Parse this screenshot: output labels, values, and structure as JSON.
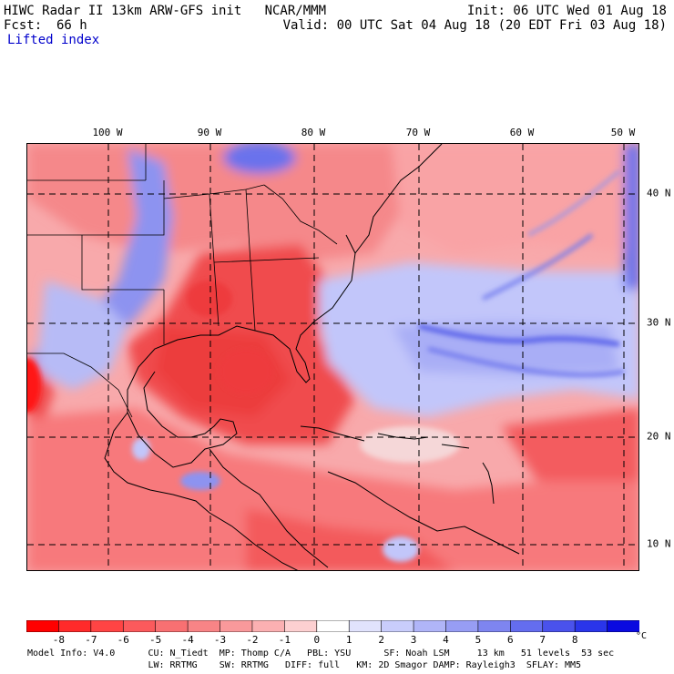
{
  "header": {
    "title": "HIWC Radar II 13km ARW-GFS init   NCAR/MMM",
    "init": "Init: 06 UTC Wed 01 Aug 18",
    "fcst_label": "Fcst:",
    "fcst_value": "66 h",
    "valid": "Valid: 00 UTC Sat 04 Aug 18 (20 EDT Fri 03 Aug 18)",
    "field": "Lifted index"
  },
  "map": {
    "longitude_labels": [
      "100 W",
      "90 W",
      "80 W",
      "70 W",
      "60 W",
      "50 W"
    ],
    "latitude_labels": [
      "40 N",
      "30 N",
      "20 N",
      "10 N"
    ],
    "grid": "dashed",
    "palette": {
      "negative_strong": "#ff0000",
      "negative_mid": "#f5696b",
      "negative_light": "#fbbdbd",
      "neutral": "#ffffff",
      "positive_light": "#c9cdfb",
      "positive_mid": "#8d93f0",
      "positive_strong": "#1010e0",
      "coastline": "#000000"
    }
  },
  "colorbar": {
    "labels": [
      "-8",
      "-7",
      "-6",
      "-5",
      "-4",
      "-3",
      "-2",
      "-1",
      "0",
      "1",
      "2",
      "3",
      "4",
      "5",
      "6",
      "7",
      "8"
    ],
    "unit": "°C",
    "colors": [
      "#ff0000",
      "#ff2a2a",
      "#ff4444",
      "#fb5a5c",
      "#f87072",
      "#f88486",
      "#f9999b",
      "#fbb0b2",
      "#fdd0d1",
      "#ffffff",
      "#e1e3fd",
      "#c9cdfb",
      "#b0b5f8",
      "#979df4",
      "#7e85f0",
      "#646def",
      "#4a52ec",
      "#2a35ea",
      "#0a0ae0"
    ]
  },
  "footer": {
    "line1": "Model Info: V4.0      CU: N_Tiedt  MP: Thomp C/A   PBL: YSU      SF: Noah LSM     13 km   51 levels  53 sec",
    "line2": "                      LW: RRTMG    SW: RRTMG   DIFF: full   KM: 2D Smagor DAMP: Rayleigh3  SFLAY: MM5"
  }
}
